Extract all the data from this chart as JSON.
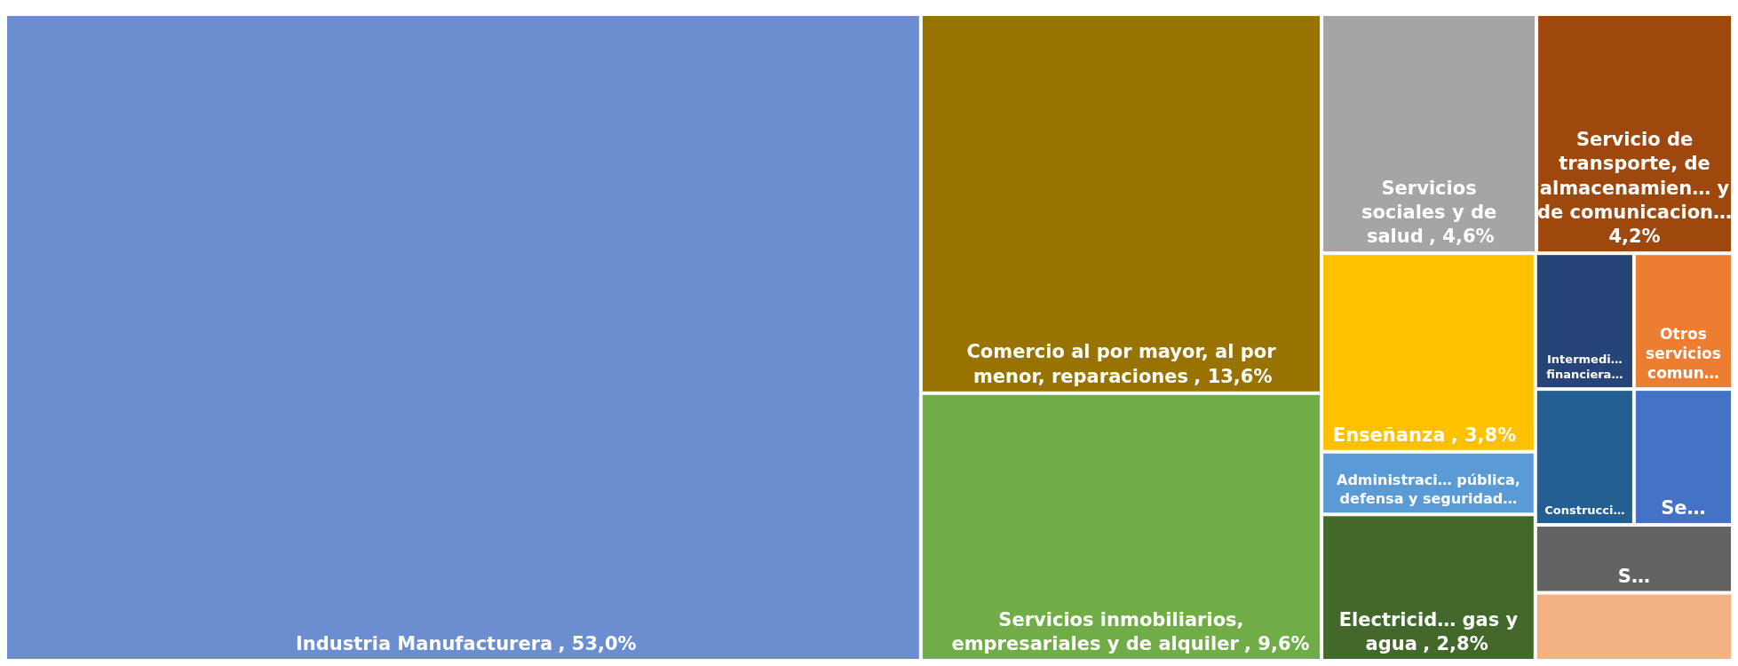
{
  "chart_data": {
    "type": "other",
    "categories": [
      "Industria Manufacturera",
      "Comercio al por mayor, al por menor, reparaciones",
      "Servicios inmobiliarios, empresariales y de alquiler",
      "Servicios sociales y de salud",
      "Servicio de transporte, de almacenamien… y de comunicacion…",
      "Enseñanza",
      "Administraci… pública, defensa y seguridad…",
      "Electricid… gas y agua",
      "Intermedi… financiera…",
      "Otros servicios comun…",
      "Construcci…",
      "Se…",
      "S…",
      null
    ],
    "values": [
      53.0,
      13.6,
      9.6,
      4.6,
      4.2,
      3.8,
      null,
      2.8,
      null,
      null,
      null,
      null,
      null,
      null
    ],
    "value_labels": [
      ", 53,0%",
      ", 13,6%",
      ", 9,6%",
      ", 4,6%",
      "4,2%",
      ", 3,8%",
      null,
      ", 2,8%",
      null,
      null,
      null,
      null,
      null,
      null
    ],
    "colors": [
      "#6a8ecf",
      "#997300",
      "#70ad47",
      "#a5a5a5",
      "#9e480e",
      "#ffc000",
      "#5b9bd5",
      "#43682b",
      "#264478",
      "#ed7d31",
      "#255e91",
      "#4472c4",
      "#636363",
      "#f4b183"
    ]
  }
}
